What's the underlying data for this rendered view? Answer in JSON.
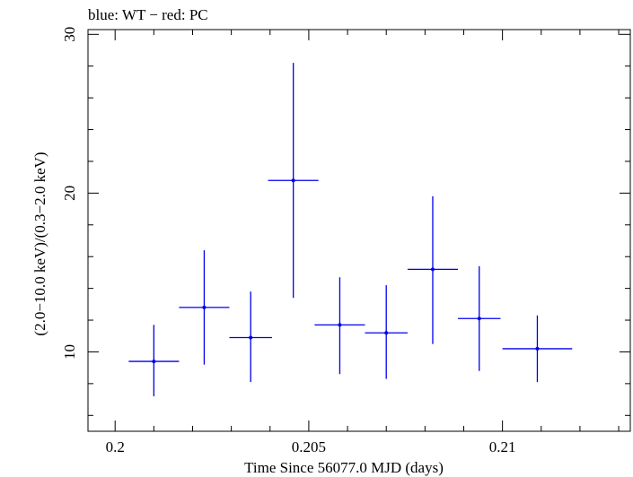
{
  "chart_data": {
    "type": "scatter",
    "title": "blue: WT − red: PC",
    "xlabel": "Time Since 56077.0 MJD (days)",
    "ylabel": "(2.0−10.0 keV)/(0.3−2.0 keV)",
    "xlim": [
      0.1993,
      0.2133
    ],
    "ylim": [
      5.0,
      30.3
    ],
    "x_major_ticks": [
      0.2,
      0.205,
      0.21
    ],
    "x_tick_labels": [
      "0.2",
      "0.205",
      "0.21"
    ],
    "x_minor_step": 0.001,
    "y_major_ticks": [
      10,
      20,
      30
    ],
    "y_tick_labels": [
      "10",
      "20",
      "30"
    ],
    "y_minor_step": 2,
    "grid": false,
    "series": [
      {
        "color": "#0000ee",
        "points": [
          {
            "x": 0.201,
            "y": 9.4,
            "xerr": 0.00065,
            "ylo": 7.2,
            "yhi": 11.7
          },
          {
            "x": 0.2023,
            "y": 12.8,
            "xerr": 0.00065,
            "ylo": 9.2,
            "yhi": 16.4
          },
          {
            "x": 0.2035,
            "y": 10.9,
            "xerr": 0.00055,
            "ylo": 8.1,
            "yhi": 13.8
          },
          {
            "x": 0.2046,
            "y": 20.8,
            "xerr": 0.00065,
            "ylo": 13.4,
            "yhi": 28.2
          },
          {
            "x": 0.2058,
            "y": 11.7,
            "xerr": 0.00065,
            "ylo": 8.6,
            "yhi": 14.7
          },
          {
            "x": 0.207,
            "y": 11.2,
            "xerr": 0.00055,
            "ylo": 8.3,
            "yhi": 14.2
          },
          {
            "x": 0.2082,
            "y": 15.2,
            "xerr": 0.00065,
            "ylo": 10.5,
            "yhi": 19.8
          },
          {
            "x": 0.2094,
            "y": 12.1,
            "xerr": 0.00055,
            "ylo": 8.8,
            "yhi": 15.4
          },
          {
            "x": 0.2109,
            "y": 10.2,
            "xerr": 0.0009,
            "ylo": 8.1,
            "yhi": 12.3
          }
        ]
      }
    ]
  }
}
